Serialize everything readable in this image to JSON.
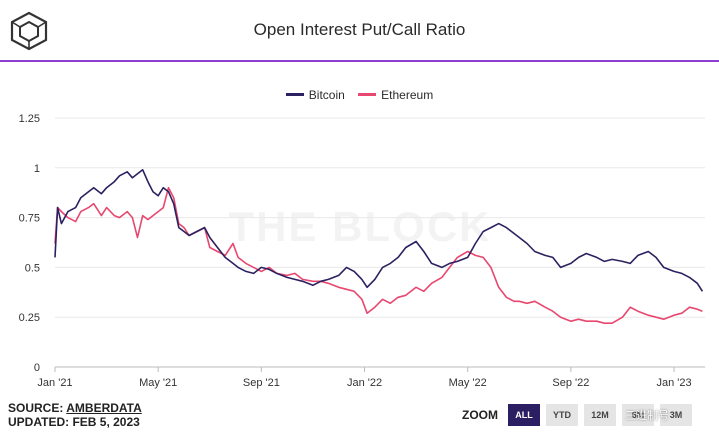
{
  "header": {
    "title": "Open Interest Put/Call Ratio"
  },
  "colors": {
    "bitcoin": "#2b2160",
    "ethereum": "#e8476f",
    "accent": "#8d3fd0",
    "grid": "#e8e8e8"
  },
  "watermark": "THE BLOCK",
  "footer": {
    "source_prefix": "SOURCE: ",
    "source_name": "AMBERDATA",
    "updated": "UPDATED: FEB 5, 2023"
  },
  "zoom": {
    "label": "ZOOM",
    "buttons": [
      "ALL",
      "YTD",
      "12M",
      "6M",
      "3M"
    ],
    "active": "ALL"
  },
  "corner_text": "三进制号",
  "chart_data": {
    "type": "line",
    "title": "Open Interest Put/Call Ratio",
    "xlabel": "",
    "ylabel": "",
    "ylim": [
      0,
      1.25
    ],
    "yticks": [
      0,
      0.25,
      0.5,
      0.75,
      1,
      1.25
    ],
    "ytick_labels": [
      "0",
      "0.25",
      "0.5",
      "0.75",
      "1",
      "1.25"
    ],
    "xlim": [
      0,
      25.2
    ],
    "xtick_positions": [
      0,
      4,
      8,
      12,
      16,
      20,
      24
    ],
    "xtick_labels": [
      "Jan '21",
      "May '21",
      "Sep '21",
      "Jan '22",
      "May '22",
      "Sep '22",
      "Jan '23"
    ],
    "legend_position": "top-center",
    "series": [
      {
        "name": "Bitcoin",
        "x": [
          0,
          0.1,
          0.25,
          0.5,
          0.8,
          1.0,
          1.3,
          1.5,
          1.8,
          2.0,
          2.3,
          2.5,
          2.8,
          3.0,
          3.2,
          3.4,
          3.6,
          3.8,
          4.0,
          4.2,
          4.4,
          4.6,
          4.8,
          5.0,
          5.2,
          5.5,
          5.8,
          6.0,
          6.3,
          6.6,
          6.9,
          7.1,
          7.4,
          7.7,
          8.0,
          8.3,
          8.6,
          9.0,
          9.3,
          9.6,
          10.0,
          10.3,
          10.6,
          11.0,
          11.3,
          11.6,
          11.9,
          12.1,
          12.4,
          12.7,
          13.0,
          13.3,
          13.6,
          14.0,
          14.3,
          14.6,
          15.0,
          15.3,
          15.6,
          16.0,
          16.3,
          16.6,
          16.9,
          17.2,
          17.5,
          17.8,
          18.0,
          18.3,
          18.6,
          19.0,
          19.3,
          19.6,
          20.0,
          20.3,
          20.6,
          21.0,
          21.3,
          21.6,
          22.0,
          22.3,
          22.6,
          23.0,
          23.3,
          23.6,
          24.0,
          24.3,
          24.6,
          24.9,
          25.1
        ],
        "values": [
          0.55,
          0.8,
          0.72,
          0.78,
          0.8,
          0.85,
          0.88,
          0.9,
          0.87,
          0.9,
          0.93,
          0.96,
          0.98,
          0.95,
          0.97,
          0.99,
          0.93,
          0.88,
          0.86,
          0.9,
          0.88,
          0.82,
          0.7,
          0.68,
          0.66,
          0.68,
          0.7,
          0.65,
          0.6,
          0.55,
          0.52,
          0.5,
          0.48,
          0.47,
          0.5,
          0.49,
          0.47,
          0.45,
          0.44,
          0.43,
          0.41,
          0.43,
          0.44,
          0.46,
          0.5,
          0.48,
          0.44,
          0.4,
          0.44,
          0.5,
          0.52,
          0.55,
          0.6,
          0.63,
          0.58,
          0.52,
          0.5,
          0.52,
          0.53,
          0.55,
          0.62,
          0.68,
          0.7,
          0.72,
          0.7,
          0.67,
          0.65,
          0.62,
          0.58,
          0.56,
          0.55,
          0.5,
          0.52,
          0.55,
          0.57,
          0.55,
          0.53,
          0.54,
          0.53,
          0.52,
          0.56,
          0.58,
          0.55,
          0.5,
          0.48,
          0.47,
          0.45,
          0.42,
          0.38
        ]
      },
      {
        "name": "Ethereum",
        "x": [
          0,
          0.1,
          0.25,
          0.5,
          0.8,
          1.0,
          1.3,
          1.5,
          1.8,
          2.0,
          2.3,
          2.5,
          2.8,
          3.0,
          3.2,
          3.4,
          3.6,
          3.8,
          4.0,
          4.2,
          4.4,
          4.6,
          4.8,
          5.0,
          5.2,
          5.5,
          5.8,
          6.0,
          6.3,
          6.6,
          6.9,
          7.1,
          7.4,
          7.7,
          8.0,
          8.3,
          8.6,
          9.0,
          9.3,
          9.6,
          10.0,
          10.3,
          10.6,
          11.0,
          11.3,
          11.6,
          11.9,
          12.1,
          12.4,
          12.7,
          13.0,
          13.3,
          13.6,
          14.0,
          14.3,
          14.6,
          15.0,
          15.3,
          15.6,
          16.0,
          16.3,
          16.6,
          16.9,
          17.2,
          17.5,
          17.8,
          18.0,
          18.3,
          18.6,
          19.0,
          19.3,
          19.6,
          20.0,
          20.3,
          20.6,
          21.0,
          21.3,
          21.6,
          22.0,
          22.3,
          22.6,
          23.0,
          23.3,
          23.6,
          24.0,
          24.3,
          24.6,
          24.9,
          25.1
        ],
        "values": [
          0.62,
          0.8,
          0.78,
          0.75,
          0.73,
          0.78,
          0.8,
          0.82,
          0.76,
          0.8,
          0.76,
          0.75,
          0.78,
          0.75,
          0.65,
          0.76,
          0.74,
          0.76,
          0.78,
          0.8,
          0.9,
          0.85,
          0.72,
          0.7,
          0.66,
          0.68,
          0.7,
          0.6,
          0.58,
          0.56,
          0.62,
          0.55,
          0.52,
          0.5,
          0.48,
          0.5,
          0.47,
          0.46,
          0.47,
          0.44,
          0.43,
          0.43,
          0.42,
          0.4,
          0.39,
          0.38,
          0.34,
          0.27,
          0.3,
          0.34,
          0.32,
          0.35,
          0.36,
          0.4,
          0.38,
          0.42,
          0.45,
          0.5,
          0.55,
          0.58,
          0.56,
          0.55,
          0.5,
          0.4,
          0.35,
          0.33,
          0.33,
          0.32,
          0.33,
          0.3,
          0.28,
          0.25,
          0.23,
          0.24,
          0.23,
          0.23,
          0.22,
          0.22,
          0.25,
          0.3,
          0.28,
          0.26,
          0.25,
          0.24,
          0.26,
          0.27,
          0.3,
          0.29,
          0.28
        ]
      }
    ]
  }
}
